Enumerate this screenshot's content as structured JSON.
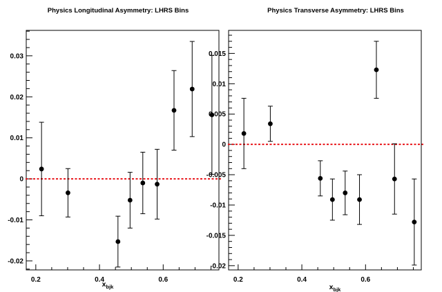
{
  "chart_data": [
    {
      "type": "scatter",
      "title": "Physics Longitudinal Asymmetry: LHRS Bins",
      "xlabel": "x",
      "xlabel_sub": "bjk",
      "ylabel": "",
      "xlim": [
        0.17,
        0.775
      ],
      "ylim": [
        -0.0222,
        0.0362
      ],
      "xticks": [
        0.2,
        0.4,
        0.6
      ],
      "xtick_labels": [
        "0.2",
        "0.4",
        "0.6"
      ],
      "yticks": [
        -0.02,
        -0.01,
        0,
        0.01,
        0.02,
        0.03
      ],
      "ytick_labels": [
        "-0.02",
        "-0.01",
        "0",
        "0.01",
        "0.02",
        "0.03"
      ],
      "reference_line": {
        "y": 0,
        "color": "#e8141a",
        "style": "dashed"
      },
      "series": [
        {
          "x": [
            0.218,
            0.301,
            0.458,
            0.496,
            0.536,
            0.581,
            0.634,
            0.691,
            0.753
          ],
          "y": [
            0.0024,
            -0.0034,
            -0.0153,
            -0.0052,
            -0.001,
            -0.0013,
            0.0167,
            0.0219,
            0.0156
          ],
          "yerr": [
            0.0114,
            0.0059,
            0.0062,
            0.0068,
            0.0075,
            0.0085,
            0.0097,
            0.0116,
            0.0145
          ]
        }
      ]
    },
    {
      "type": "scatter",
      "title": "Physics Transverse Asymmetry: LHRS Bins",
      "xlabel": "x",
      "xlabel_sub": "bjk",
      "ylabel": "",
      "xlim": [
        0.17,
        0.775
      ],
      "ylim": [
        -0.0207,
        0.0188
      ],
      "xticks": [
        0.2,
        0.4,
        0.6
      ],
      "xtick_labels": [
        "0.2",
        "0.4",
        "0.6"
      ],
      "yticks": [
        -0.02,
        -0.015,
        -0.01,
        -0.005,
        0,
        0.005,
        0.01,
        0.015
      ],
      "ytick_labels": [
        "-0.02",
        "-0.015",
        "-0.01",
        "-0.005",
        "0",
        "0.005",
        "0.01",
        "0.015"
      ],
      "reference_line": {
        "y": 0,
        "color": "#e8141a",
        "style": "dashed"
      },
      "series": [
        {
          "x": [
            0.218,
            0.301,
            0.458,
            0.496,
            0.536,
            0.581,
            0.634,
            0.691,
            0.753
          ],
          "y": [
            0.0018,
            0.0034,
            -0.0056,
            -0.0091,
            -0.008,
            -0.0091,
            0.0123,
            -0.0057,
            -0.0128
          ],
          "yerr": [
            0.0058,
            0.0029,
            0.0029,
            0.0034,
            0.0036,
            0.0041,
            0.0047,
            0.0058,
            0.0071
          ]
        }
      ]
    }
  ]
}
